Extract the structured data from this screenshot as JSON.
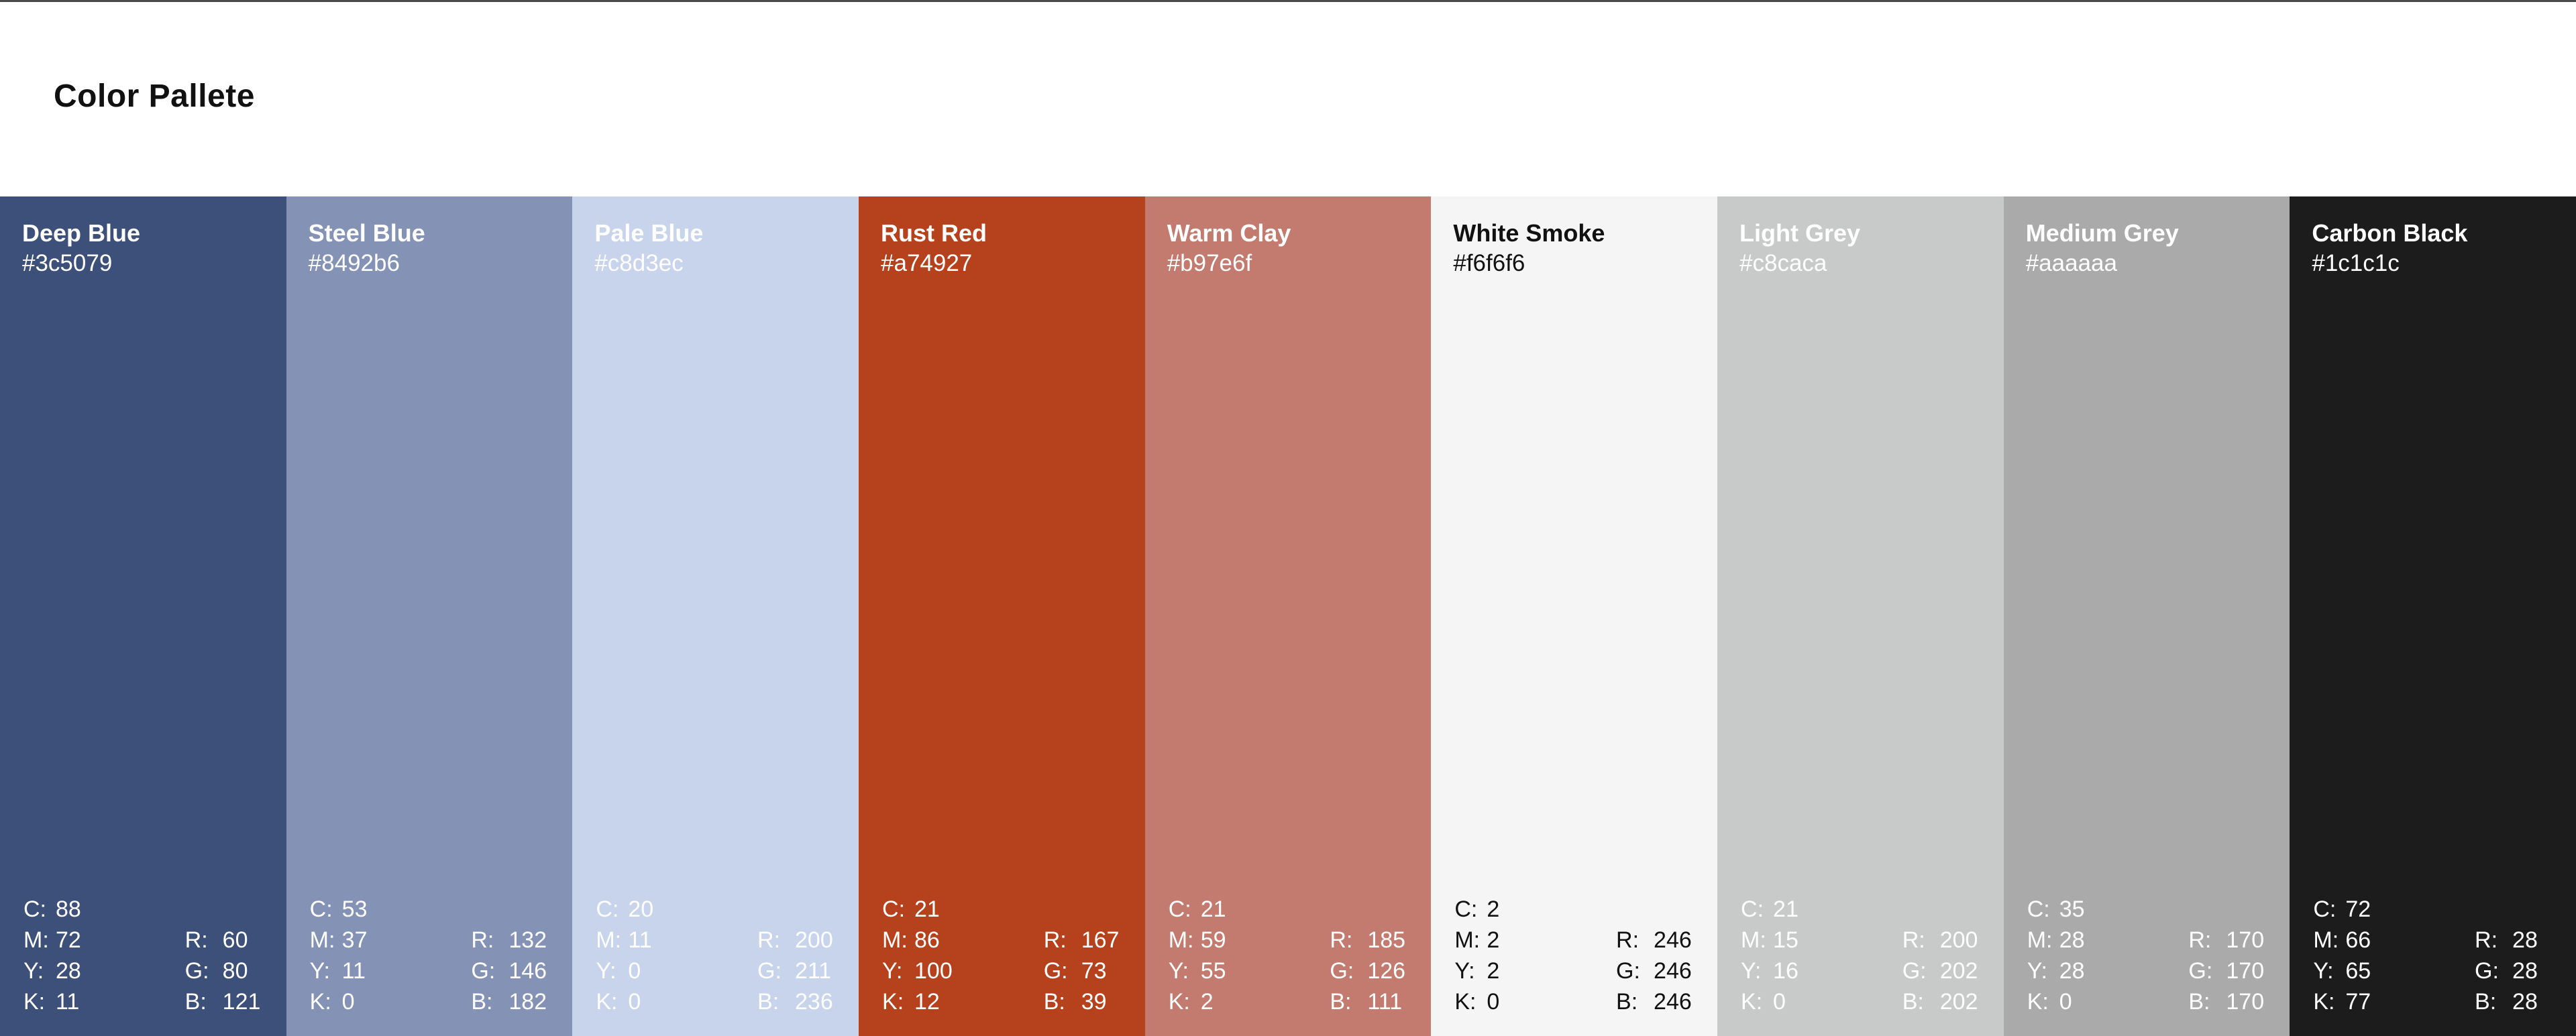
{
  "page": {
    "title": "Color Pallete"
  },
  "labels": {
    "c": "C:",
    "m": "M:",
    "y": "Y:",
    "k": "K:",
    "r": "R:",
    "g": "G:",
    "b": "B:"
  },
  "swatches": [
    {
      "name": "Deep Blue",
      "hex": "#3c5079",
      "bg": "#3c5079",
      "text_color": "#ffffff",
      "c": "88",
      "m": "72",
      "y": "28",
      "k": "11",
      "r": "60",
      "g": "80",
      "b": "121"
    },
    {
      "name": "Steel Blue",
      "hex": "#8492b6",
      "bg": "#8492b6",
      "text_color": "#ffffff",
      "c": "53",
      "m": "37",
      "y": "11",
      "k": "0",
      "r": "132",
      "g": "146",
      "b": "182"
    },
    {
      "name": "Pale Blue",
      "hex": "#c8d3ec",
      "bg": "#c8d3ec",
      "text_color": "#ffffff",
      "c": "20",
      "m": "11",
      "y": "0",
      "k": "0",
      "r": "200",
      "g": "211",
      "b": "236"
    },
    {
      "name": "Rust Red",
      "hex": "#a74927",
      "bg": "#b5421c",
      "text_color": "#ffffff",
      "c": "21",
      "m": "86",
      "y": "100",
      "k": "12",
      "r": "167",
      "g": "73",
      "b": "39"
    },
    {
      "name": "Warm Clay",
      "hex": "#b97e6f",
      "bg": "#c27b6e",
      "text_color": "#ffffff",
      "c": "21",
      "m": "59",
      "y": "55",
      "k": "2",
      "r": "185",
      "g": "126",
      "b": "111"
    },
    {
      "name": "White Smoke",
      "hex": "#f6f6f6",
      "bg": "#f5f5f5",
      "text_color": "#111111",
      "c": "2",
      "m": "2",
      "y": "2",
      "k": "0",
      "r": "246",
      "g": "246",
      "b": "246"
    },
    {
      "name": "Light Grey",
      "hex": "#c8caca",
      "bg": "#c8caca",
      "text_color": "#ffffff",
      "c": "21",
      "m": "15",
      "y": "16",
      "k": "0",
      "r": "200",
      "g": "202",
      "b": "202"
    },
    {
      "name": "Medium Grey",
      "hex": "#aaaaaa",
      "bg": "#aaaaaa",
      "text_color": "#ffffff",
      "c": "35",
      "m": "28",
      "y": "28",
      "k": "0",
      "r": "170",
      "g": "170",
      "b": "170"
    },
    {
      "name": "Carbon Black",
      "hex": "#1c1c1c",
      "bg": "#1c1c1c",
      "text_color": "#ffffff",
      "c": "72",
      "m": "66",
      "y": "65",
      "k": "77",
      "r": "28",
      "g": "28",
      "b": "28"
    }
  ]
}
